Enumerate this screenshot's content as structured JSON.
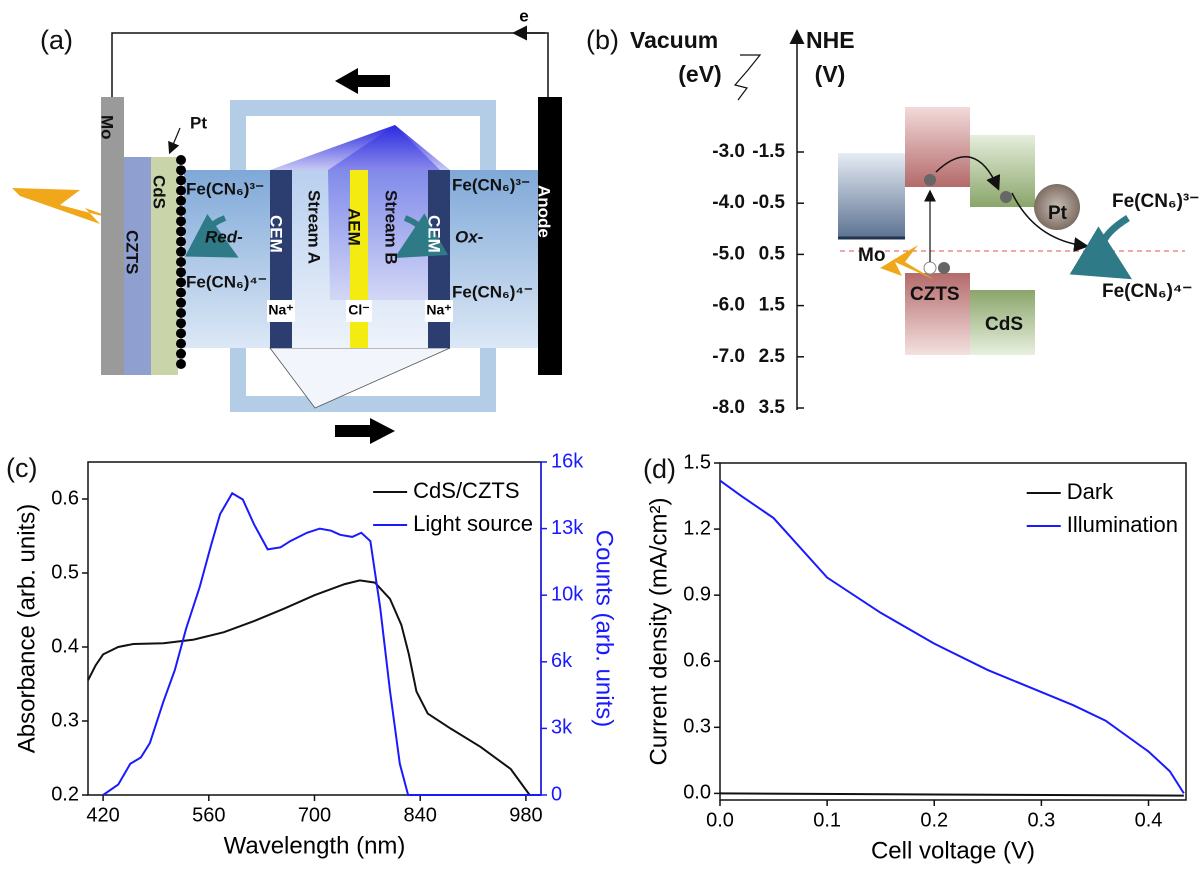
{
  "panel_a": {
    "label": "(a)",
    "electron": "e",
    "mo": "Mo",
    "pt": "Pt",
    "czts": "CZTS",
    "cds": "CdS",
    "ferri_left": "Fe(CN₆)³⁻",
    "ferro_left": "Fe(CN₆)⁴⁻",
    "red": "Red-",
    "cem_left": "CEM",
    "na_left": "Na⁺",
    "stream_a": "Stream A",
    "aem": "AEM",
    "cl": "Cl⁻",
    "stream_b": "Stream B",
    "cem_right": "CEM",
    "na_right": "Na⁺",
    "ferri_right": "Fe(CN₆)³⁻",
    "ferro_right": "Fe(CN₆)⁴⁻",
    "ox": "Ox-",
    "anode": "Anode"
  },
  "panel_b": {
    "label": "(b)",
    "vacuum": "Vacuum",
    "vacuum_unit": "(eV)",
    "nhe": "NHE",
    "nhe_unit": "(V)",
    "vacuum_ticks": [
      "-3.0",
      "-4.0",
      "-5.0",
      "-6.0",
      "-7.0",
      "-8.0"
    ],
    "nhe_ticks": [
      "-1.5",
      "-0.5",
      "0.5",
      "1.5",
      "2.5",
      "3.5"
    ],
    "mo": "Mo",
    "czts": "CZTS",
    "cds": "CdS",
    "pt": "Pt",
    "ferri": "Fe(CN₆)³⁻",
    "ferro": "Fe(CN₆)⁴⁻"
  },
  "chart_data": [
    {
      "type": "line",
      "panel_label": "(c)",
      "xlabel": "Wavelength (nm)",
      "ylabel": "Absorbance (arb. units)",
      "y2label": "Counts (arb. units)",
      "y2color": "#1a1aff",
      "xlim": [
        400,
        1000
      ],
      "xticks": [
        420,
        560,
        700,
        840,
        980
      ],
      "ylim": [
        0.2,
        0.65
      ],
      "yticks": [
        0.2,
        0.3,
        0.4,
        0.5,
        0.6
      ],
      "y2lim": [
        0,
        16000
      ],
      "y2ticks": [
        0,
        {
          "value": 3200,
          "label": "3k"
        },
        {
          "value": 6400,
          "label": "6k"
        },
        {
          "value": 9600,
          "label": "10k"
        },
        {
          "value": 12800,
          "label": "13k"
        },
        {
          "value": 16000,
          "label": "16k"
        }
      ],
      "legend": "upper right",
      "grid": false,
      "series": [
        {
          "name": "CdS/CZTS",
          "color": "#111111",
          "x": [
            400,
            410,
            420,
            440,
            460,
            500,
            540,
            580,
            620,
            660,
            700,
            740,
            760,
            780,
            800,
            815,
            825,
            835,
            850,
            880,
            920,
            960,
            985
          ],
          "values": [
            0.355,
            0.375,
            0.39,
            0.4,
            0.404,
            0.405,
            0.41,
            0.42,
            0.435,
            0.452,
            0.47,
            0.485,
            0.49,
            0.487,
            0.465,
            0.43,
            0.39,
            0.34,
            0.31,
            0.29,
            0.265,
            0.235,
            0.2
          ]
        },
        {
          "name": "Light source",
          "color": "#1a1aff",
          "axis": "y2",
          "x": [
            420,
            440,
            456,
            470,
            482,
            500,
            515,
            530,
            548,
            563,
            575,
            591,
            605,
            620,
            638,
            655,
            668,
            690,
            707,
            722,
            734,
            750,
            762,
            774,
            787,
            800,
            813,
            824,
            860,
            1000
          ],
          "values": [
            0,
            500,
            1500,
            1800,
            2500,
            4500,
            6000,
            8000,
            10000,
            12000,
            13500,
            14500,
            14200,
            13000,
            11800,
            11900,
            12200,
            12600,
            12800,
            12700,
            12500,
            12400,
            12600,
            12200,
            9000,
            5000,
            1500,
            0,
            0,
            0
          ]
        }
      ]
    },
    {
      "type": "line",
      "panel_label": "(d)",
      "xlabel": "Cell voltage (V)",
      "ylabel": "Current density (mA/cm²)",
      "xlim": [
        0,
        0.435
      ],
      "xticks": [
        {
          "value": 0,
          "label": "0.0"
        },
        0.1,
        0.2,
        0.3,
        0.4
      ],
      "ylim": [
        -0.03,
        1.5
      ],
      "yticks": [
        {
          "value": 0,
          "label": "0.0"
        },
        0.3,
        0.6,
        0.9,
        1.2,
        1.5
      ],
      "legend": "upper right",
      "grid": false,
      "series": [
        {
          "name": "Dark",
          "color": "#111111",
          "x": [
            0,
            0.2,
            0.433
          ],
          "values": [
            0,
            -0.005,
            -0.01
          ]
        },
        {
          "name": "Illumination",
          "color": "#1a1aff",
          "x": [
            0,
            0.02,
            0.05,
            0.1,
            0.15,
            0.2,
            0.25,
            0.3,
            0.33,
            0.36,
            0.4,
            0.42,
            0.433
          ],
          "values": [
            1.42,
            1.35,
            1.25,
            0.98,
            0.82,
            0.68,
            0.56,
            0.46,
            0.4,
            0.33,
            0.19,
            0.1,
            0
          ]
        }
      ]
    }
  ]
}
